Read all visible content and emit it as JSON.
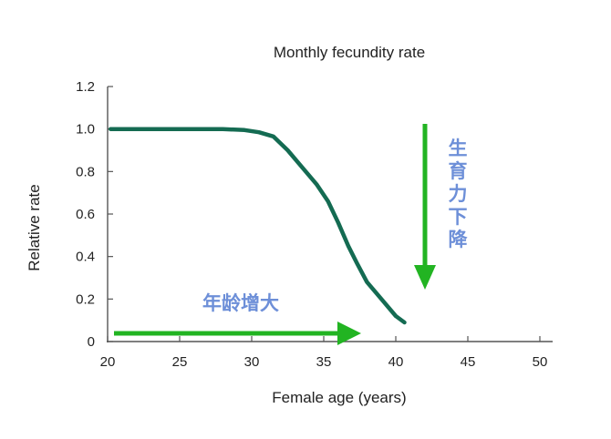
{
  "chart_data": {
    "type": "line",
    "title": "Monthly fecundity rate",
    "xlabel": "Female age (years)",
    "ylabel": "Relative rate",
    "xlim": [
      20,
      50
    ],
    "ylim": [
      0,
      1.2
    ],
    "x_ticks": [
      "20",
      "25",
      "30",
      "35",
      "40",
      "45",
      "50"
    ],
    "y_ticks": [
      "0",
      "0.2",
      "0.4",
      "0.6",
      "0.8",
      "1.0",
      "1.2"
    ],
    "grid": false,
    "series": [
      {
        "color": "#146b52",
        "points": [
          [
            20.2,
            1.0
          ],
          [
            25,
            1.0
          ],
          [
            28,
            1.0
          ],
          [
            29.5,
            0.995
          ],
          [
            30.5,
            0.985
          ],
          [
            31.5,
            0.965
          ],
          [
            32.5,
            0.9
          ],
          [
            33.5,
            0.82
          ],
          [
            34.5,
            0.74
          ],
          [
            35.3,
            0.66
          ],
          [
            36,
            0.56
          ],
          [
            36.7,
            0.45
          ],
          [
            37.3,
            0.37
          ],
          [
            38,
            0.28
          ],
          [
            39,
            0.2
          ],
          [
            40,
            0.12
          ],
          [
            40.6,
            0.09
          ]
        ]
      }
    ],
    "annotations": [
      {
        "text": "年龄增大",
        "arrow": "right",
        "color": "#22b422"
      },
      {
        "text": "生育力下降",
        "arrow": "down",
        "color": "#22b422"
      }
    ]
  }
}
